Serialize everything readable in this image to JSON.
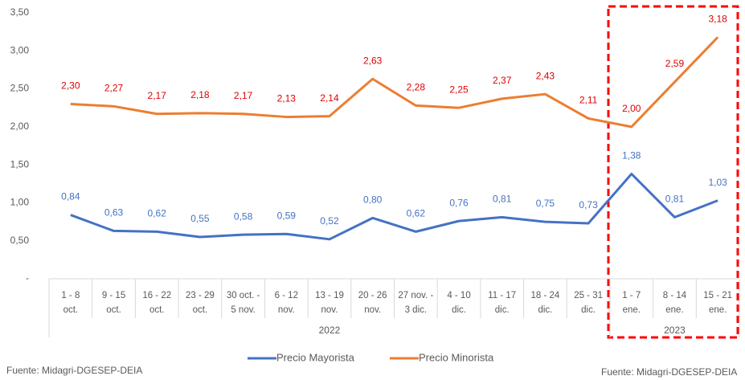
{
  "chart_data": {
    "type": "line",
    "categories": [
      [
        "1 - 8",
        "oct."
      ],
      [
        "9 - 15",
        "oct."
      ],
      [
        "16 - 22",
        "oct."
      ],
      [
        "23 - 29",
        "oct."
      ],
      [
        "30 oct. -",
        "5 nov."
      ],
      [
        "6 - 12",
        "nov."
      ],
      [
        "13 - 19",
        "nov."
      ],
      [
        "20 - 26",
        "nov."
      ],
      [
        "27 nov. -",
        "3 dic."
      ],
      [
        "4 - 10",
        "dic."
      ],
      [
        "11 - 17",
        "dic."
      ],
      [
        "18 - 24",
        "dic."
      ],
      [
        "25 - 31",
        "dic."
      ],
      [
        "1 - 7",
        "ene."
      ],
      [
        "8 - 14",
        "ene."
      ],
      [
        "15 - 21",
        "ene."
      ]
    ],
    "groups": [
      {
        "label": "2022",
        "count": 13
      },
      {
        "label": "2023",
        "count": 3
      }
    ],
    "series": [
      {
        "name": "Precio Mayorista",
        "color": "#4472c4",
        "label_color": "#4472c4",
        "values": [
          0.84,
          0.63,
          0.62,
          0.55,
          0.58,
          0.59,
          0.52,
          0.8,
          0.62,
          0.76,
          0.81,
          0.75,
          0.73,
          1.38,
          0.81,
          1.03
        ],
        "value_labels": [
          "0,84",
          "0,63",
          "0,62",
          "0,55",
          "0,58",
          "0,59",
          "0,52",
          "0,80",
          "0,62",
          "0,76",
          "0,81",
          "0,75",
          "0,73",
          "1,38",
          "0,81",
          "1,03"
        ]
      },
      {
        "name": "Precio Minorista",
        "color": "#ed7d31",
        "label_color": "#e00000",
        "values": [
          2.3,
          2.27,
          2.17,
          2.18,
          2.17,
          2.13,
          2.14,
          2.63,
          2.28,
          2.25,
          2.37,
          2.43,
          2.11,
          2.0,
          2.59,
          3.18
        ],
        "value_labels": [
          "2,30",
          "2,27",
          "2,17",
          "2,18",
          "2,17",
          "2,13",
          "2,14",
          "2,63",
          "2,28",
          "2,25",
          "2,37",
          "2,43",
          "2,11",
          "2,00",
          "2,59",
          "3,18"
        ]
      }
    ],
    "ylim": [
      0,
      3.5
    ],
    "yticks": [
      {
        "value": 0,
        "label": "-"
      },
      {
        "value": 0.5,
        "label": "0,50"
      },
      {
        "value": 1,
        "label": "1,00"
      },
      {
        "value": 1.5,
        "label": "1,50"
      },
      {
        "value": 2,
        "label": "2,00"
      },
      {
        "value": 2.5,
        "label": "2,50"
      },
      {
        "value": 3,
        "label": "3,00"
      },
      {
        "value": 3.5,
        "label": "3,50"
      }
    ],
    "source": "Fuente: Midagri-DGESEP-DEIA"
  }
}
